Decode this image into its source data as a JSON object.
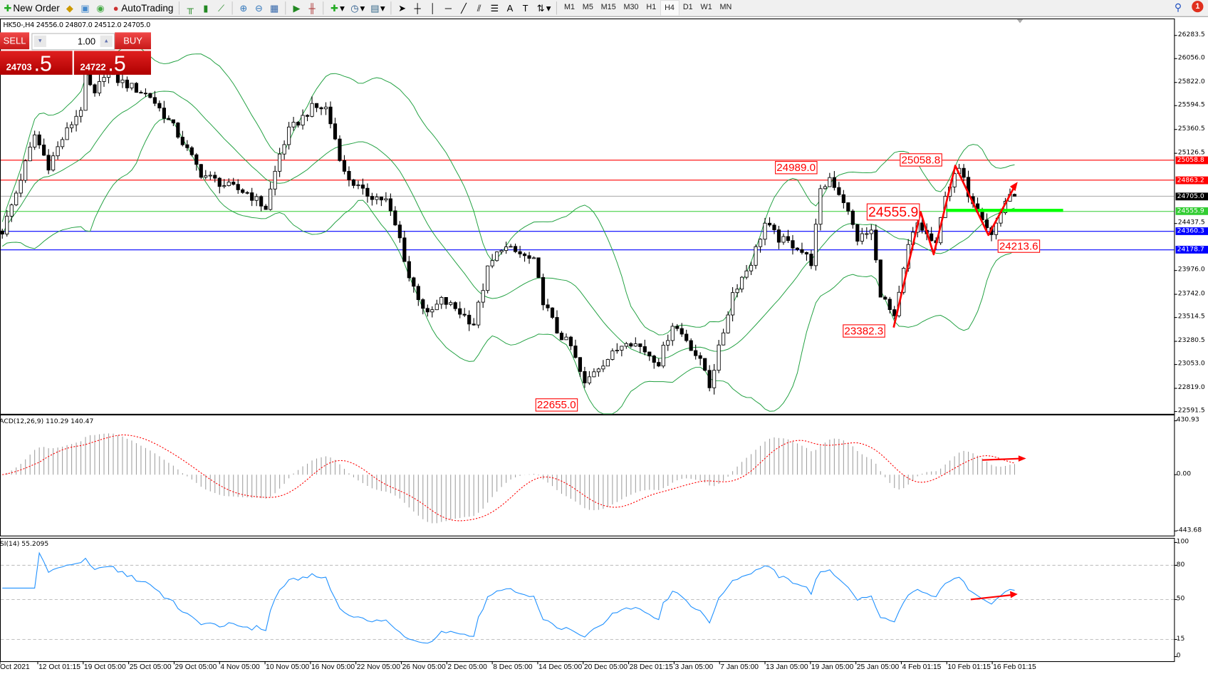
{
  "toolbar": {
    "new_order": "New Order",
    "auto_trading": "AutoTrading",
    "timeframes": [
      "M1",
      "M5",
      "M15",
      "M30",
      "H1",
      "H4",
      "D1",
      "W1",
      "MN"
    ],
    "active_timeframe": "H4",
    "notification_count": "1"
  },
  "chart": {
    "symbol_info": "HK50-,H4  24556.0 24807.0 24512.0 24705.0"
  },
  "trade_panel": {
    "sell": "SELL",
    "buy": "BUY",
    "volume": "1.00",
    "sell_main": "24703",
    "sell_pips": ".5",
    "buy_main": "24722",
    "buy_pips": ".5"
  },
  "price_axis": {
    "ticks": [
      "26283.5",
      "26056.0",
      "25822.0",
      "25594.5",
      "25360.5",
      "25126.5",
      "24437.5",
      "23976.0",
      "23742.0",
      "23514.5",
      "23280.5",
      "23053.0",
      "22819.0",
      "22591.5"
    ],
    "tags": [
      {
        "value": "25058.8",
        "color": "#ff0000"
      },
      {
        "value": "24863.2",
        "color": "#ff0000"
      },
      {
        "value": "24705.0",
        "color": "#000000"
      },
      {
        "value": "24555.9",
        "color": "#32cd32"
      },
      {
        "value": "24360.3",
        "color": "#0000ff"
      },
      {
        "value": "24178.7",
        "color": "#0000ff"
      }
    ]
  },
  "annotations": [
    "24989.0",
    "25058.8",
    "24555.9",
    "24213.6",
    "23382.3",
    "22655.0"
  ],
  "macd": {
    "label": "MACD(12,26,9) 110.29 140.47",
    "ticks": [
      "430.93",
      "0.00",
      "-443.68"
    ]
  },
  "rsi": {
    "label": "RSI(14) 55.2095",
    "ticks": [
      "100",
      "80",
      "50",
      "15",
      "0"
    ]
  },
  "time_axis": [
    "Oct 2021",
    "12 Oct 01:15",
    "19 Oct 05:00",
    "25 Oct 05:00",
    "29 Oct 05:00",
    "4 Nov 05:00",
    "10 Nov 05:00",
    "16 Nov 05:00",
    "22 Nov 05:00",
    "26 Nov 05:00",
    "2 Dec 05:00",
    "8 Dec 05:00",
    "14 Dec 05:00",
    "20 Dec 05:00",
    "28 Dec 01:15",
    "3 Jan 05:00",
    "7 Jan 05:00",
    "13 Jan 05:00",
    "19 Jan 05:00",
    "25 Jan 05:00",
    "4 Feb 01:15",
    "10 Feb 01:15",
    "16 Feb 01:15"
  ],
  "colors": {
    "bollinger": "#20a040",
    "macd_signal": "#ff0000",
    "macd_hist": "#a0a0a0",
    "rsi": "#1e90ff",
    "annotation": "#ff0000",
    "support_highlight": "#00ff00"
  },
  "chart_data": {
    "type": "candlestick",
    "symbol": "HK50-",
    "timeframe": "H4",
    "price_range": [
      22591.5,
      26283.5
    ],
    "indicators": [
      "Bollinger Bands(20,2)",
      "MACD(12,26,9)",
      "RSI(14)"
    ],
    "close_anchors": [
      [
        0,
        24362
      ],
      [
        3,
        24740
      ],
      [
        7,
        25307
      ],
      [
        10,
        25005
      ],
      [
        13,
        25270
      ],
      [
        17,
        25572
      ],
      [
        18,
        25875
      ],
      [
        20,
        25686
      ],
      [
        22,
        25913
      ],
      [
        32,
        25686
      ],
      [
        37,
        25383
      ],
      [
        43,
        24929
      ],
      [
        48,
        24815
      ],
      [
        53,
        24740
      ],
      [
        57,
        24589
      ],
      [
        60,
        25118
      ],
      [
        62,
        25345
      ],
      [
        67,
        25572
      ],
      [
        70,
        25572
      ],
      [
        72,
        25270
      ],
      [
        74,
        24929
      ],
      [
        78,
        24740
      ],
      [
        83,
        24664
      ],
      [
        86,
        24286
      ],
      [
        88,
        23908
      ],
      [
        92,
        23530
      ],
      [
        95,
        23681
      ],
      [
        98,
        23605
      ],
      [
        102,
        23454
      ],
      [
        105,
        23984
      ],
      [
        108,
        24211
      ],
      [
        112,
        24135
      ],
      [
        115,
        24059
      ],
      [
        117,
        23681
      ],
      [
        120,
        23378
      ],
      [
        123,
        23227
      ],
      [
        126,
        22849
      ],
      [
        128,
        22999
      ],
      [
        132,
        23151
      ],
      [
        135,
        23302
      ],
      [
        138,
        23227
      ],
      [
        142,
        23075
      ],
      [
        145,
        23454
      ],
      [
        148,
        23302
      ],
      [
        152,
        22999
      ],
      [
        153,
        22849
      ],
      [
        156,
        23378
      ],
      [
        158,
        23757
      ],
      [
        162,
        24059
      ],
      [
        165,
        24437
      ],
      [
        168,
        24286
      ],
      [
        172,
        24211
      ],
      [
        175,
        24059
      ],
      [
        177,
        24740
      ],
      [
        179,
        24891
      ],
      [
        182,
        24664
      ],
      [
        185,
        24286
      ],
      [
        188,
        24362
      ],
      [
        190,
        23757
      ],
      [
        193,
        23492
      ],
      [
        196,
        24211
      ],
      [
        198,
        24437
      ],
      [
        202,
        24211
      ],
      [
        204,
        24740
      ],
      [
        207,
        24967
      ],
      [
        209,
        24740
      ],
      [
        212,
        24513
      ],
      [
        214,
        24324
      ],
      [
        217,
        24664
      ],
      [
        219,
        24705
      ]
    ],
    "horizontal_levels": [
      25058.8,
      24863.2,
      24705.0,
      24555.9,
      24360.3,
      24178.7
    ]
  }
}
